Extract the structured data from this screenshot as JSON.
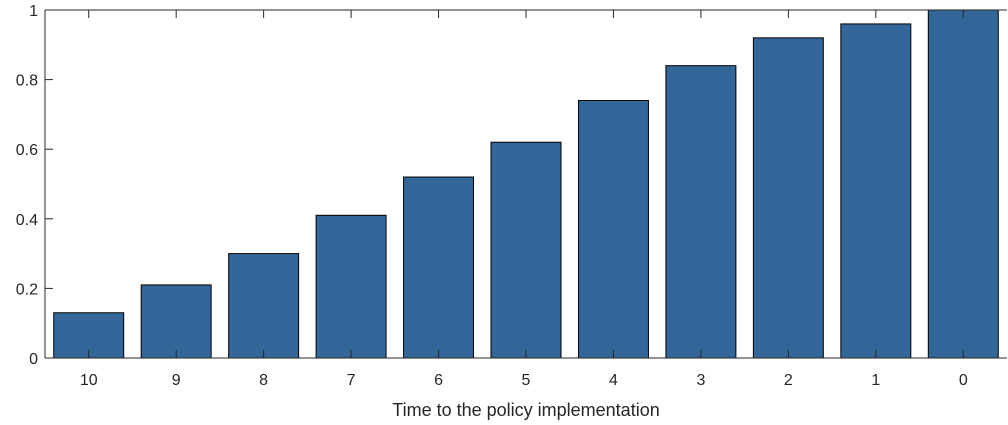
{
  "chart_data": {
    "type": "bar",
    "categories": [
      "10",
      "9",
      "8",
      "7",
      "6",
      "5",
      "4",
      "3",
      "2",
      "1",
      "0"
    ],
    "values": [
      0.13,
      0.21,
      0.3,
      0.41,
      0.52,
      0.62,
      0.74,
      0.84,
      0.92,
      0.96,
      1.0
    ],
    "title": "",
    "xlabel": "Time to the policy implementation",
    "ylabel": "",
    "ylim": [
      0,
      1
    ],
    "yticks": [
      0,
      0.2,
      0.4,
      0.6,
      0.8,
      1
    ],
    "ytick_labels": [
      "0",
      "0.2",
      "0.4",
      "0.6",
      "0.8",
      "1"
    ],
    "grid": false,
    "bar_color": "#336699",
    "edge_color": "#000000"
  }
}
